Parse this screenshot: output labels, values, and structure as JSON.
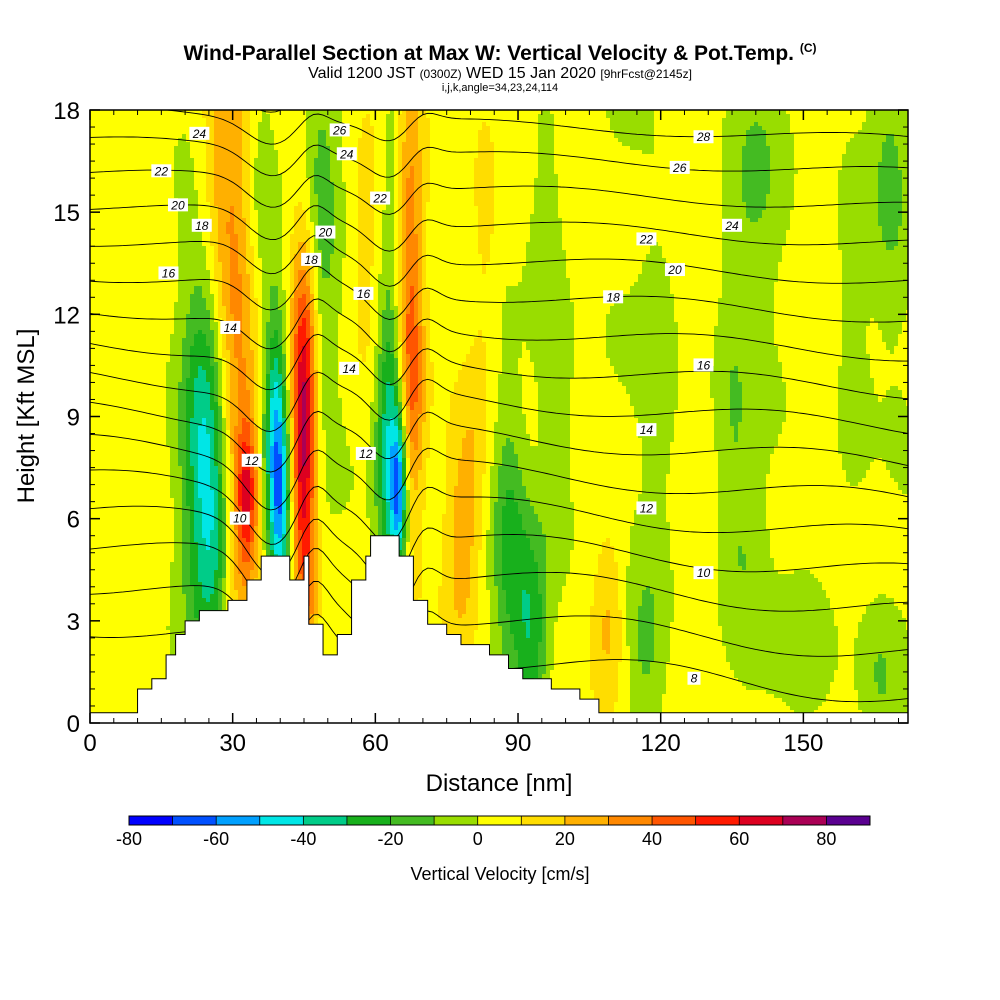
{
  "title": {
    "main": "Wind-Parallel Section at Max W: Vertical Velocity & Pot.Temp.",
    "copyright": "(C)",
    "valid_prefix": "Valid 1200 JST",
    "valid_utc": "(0300Z)",
    "valid_date": "WED 15 Jan 2020",
    "forecast": "[9hrFcst@2145z]",
    "indices": "i,j,k,angle=34,23,24,114"
  },
  "chart_data": {
    "type": "heatmap",
    "xlabel": "Distance [nm]",
    "ylabel": "Height [Kft MSL]",
    "xlim": [
      0,
      172
    ],
    "ylim": [
      0,
      18
    ],
    "x_ticks": [
      0,
      30,
      60,
      90,
      120,
      150
    ],
    "y_ticks": [
      0,
      3,
      6,
      9,
      12,
      15,
      18
    ],
    "colorbar": {
      "label": "Vertical Velocity [cm/s]",
      "tick_labels": [
        -80,
        -60,
        -40,
        -20,
        0,
        20,
        40,
        60,
        80
      ],
      "bounds": [
        -80,
        90
      ],
      "step": 10,
      "colors": [
        "#0000ff",
        "#0050ff",
        "#00a0ff",
        "#00e6e6",
        "#00cc88",
        "#18b01c",
        "#44bb22",
        "#99dd00",
        "#ffff00",
        "#ffdd00",
        "#ffb000",
        "#ff8800",
        "#ff5500",
        "#ff1a00",
        "#dd0020",
        "#aa0055",
        "#5a0090"
      ]
    },
    "terrain_profile": [
      [
        0,
        0.3
      ],
      [
        10,
        0.3
      ],
      [
        10,
        1.0
      ],
      [
        13,
        1.0
      ],
      [
        13,
        1.3
      ],
      [
        16,
        1.3
      ],
      [
        16,
        2.0
      ],
      [
        18,
        2.0
      ],
      [
        18,
        2.6
      ],
      [
        20,
        2.6
      ],
      [
        20,
        3.0
      ],
      [
        23,
        3.0
      ],
      [
        23,
        3.3
      ],
      [
        29,
        3.3
      ],
      [
        29,
        3.6
      ],
      [
        33,
        3.6
      ],
      [
        33,
        4.2
      ],
      [
        36,
        4.2
      ],
      [
        36,
        4.9
      ],
      [
        42,
        4.9
      ],
      [
        42,
        4.2
      ],
      [
        45,
        4.2
      ],
      [
        45,
        4.9
      ],
      [
        46,
        4.9
      ],
      [
        46,
        2.9
      ],
      [
        49,
        2.9
      ],
      [
        49,
        2.0
      ],
      [
        52,
        2.0
      ],
      [
        52,
        2.6
      ],
      [
        55,
        2.6
      ],
      [
        55,
        4.2
      ],
      [
        58,
        4.2
      ],
      [
        58,
        4.9
      ],
      [
        59,
        4.9
      ],
      [
        59,
        5.5
      ],
      [
        65,
        5.5
      ],
      [
        65,
        4.9
      ],
      [
        68,
        4.9
      ],
      [
        68,
        3.6
      ],
      [
        71,
        3.6
      ],
      [
        71,
        2.9
      ],
      [
        75,
        2.9
      ],
      [
        75,
        2.6
      ],
      [
        78,
        2.6
      ],
      [
        78,
        2.3
      ],
      [
        84,
        2.3
      ],
      [
        84,
        2.0
      ],
      [
        88,
        2.0
      ],
      [
        88,
        1.6
      ],
      [
        91,
        1.6
      ],
      [
        91,
        1.3
      ],
      [
        97,
        1.3
      ],
      [
        97,
        1.0
      ],
      [
        103,
        1.0
      ],
      [
        103,
        0.7
      ],
      [
        107,
        0.7
      ],
      [
        107,
        0.3
      ],
      [
        172,
        0.3
      ]
    ],
    "w_cells": [
      {
        "x": 24,
        "y": 7.8,
        "sx": 3.2,
        "sy": 4.0,
        "amp": -42
      },
      {
        "x": 27,
        "y": 5.2,
        "sx": 2.5,
        "sy": 2.0,
        "amp": -20
      },
      {
        "x": 31,
        "y": 9.0,
        "sx": 3.0,
        "sy": 7.0,
        "amp": 28
      },
      {
        "x": 33,
        "y": 6.8,
        "sx": 1.5,
        "sy": 1.5,
        "amp": 40
      },
      {
        "x": 27,
        "y": 16.0,
        "sx": 3.0,
        "sy": 3.0,
        "amp": 20
      },
      {
        "x": 39,
        "y": 7.8,
        "sx": 1.7,
        "sy": 3.0,
        "amp": -58
      },
      {
        "x": 40.5,
        "y": 6.2,
        "sx": 1.3,
        "sy": 1.8,
        "amp": -28
      },
      {
        "x": 45,
        "y": 8.0,
        "sx": 1.7,
        "sy": 3.0,
        "amp": 62
      },
      {
        "x": 45,
        "y": 12.0,
        "sx": 2.0,
        "sy": 3.0,
        "amp": 26
      },
      {
        "x": 46,
        "y": 3.5,
        "sx": 1.5,
        "sy": 1.5,
        "amp": 18
      },
      {
        "x": 48,
        "y": 15.0,
        "sx": 3.0,
        "sy": 4.0,
        "amp": -18
      },
      {
        "x": 36,
        "y": 15.5,
        "sx": 2.5,
        "sy": 3.0,
        "amp": -15
      },
      {
        "x": 58,
        "y": 14.0,
        "sx": 3.0,
        "sy": 3.0,
        "amp": 12
      },
      {
        "x": 63,
        "y": 8.5,
        "sx": 2.0,
        "sy": 3.3,
        "amp": -45
      },
      {
        "x": 65,
        "y": 6.8,
        "sx": 1.2,
        "sy": 1.5,
        "amp": -50
      },
      {
        "x": 67,
        "y": 14.0,
        "sx": 2.0,
        "sy": 4.0,
        "amp": 30
      },
      {
        "x": 68,
        "y": 9.5,
        "sx": 1.7,
        "sy": 2.5,
        "amp": 22
      },
      {
        "x": 64,
        "y": 17.0,
        "sx": 2.0,
        "sy": 2.0,
        "amp": -14
      },
      {
        "x": 78,
        "y": 5.2,
        "sx": 2.5,
        "sy": 2.5,
        "amp": 22
      },
      {
        "x": 81,
        "y": 8.0,
        "sx": 2.5,
        "sy": 2.5,
        "amp": 12
      },
      {
        "x": 88,
        "y": 5.5,
        "sx": 2.5,
        "sy": 3.0,
        "amp": -22
      },
      {
        "x": 93,
        "y": 2.0,
        "sx": 2.5,
        "sy": 2.0,
        "amp": -25
      },
      {
        "x": 92,
        "y": 4.0,
        "sx": 3.0,
        "sy": 2.0,
        "amp": -14
      },
      {
        "x": 83,
        "y": 15.0,
        "sx": 2.0,
        "sy": 3.0,
        "amp": 12
      },
      {
        "x": 98,
        "y": 8.0,
        "sx": 3.0,
        "sy": 3.0,
        "amp": -12
      },
      {
        "x": 96,
        "y": 14.5,
        "sx": 3.0,
        "sy": 3.0,
        "amp": -12
      },
      {
        "x": 109,
        "y": 3.0,
        "sx": 2.5,
        "sy": 2.0,
        "amp": 20
      },
      {
        "x": 117,
        "y": 2.0,
        "sx": 3.0,
        "sy": 2.0,
        "amp": -14
      },
      {
        "x": 120,
        "y": 10.0,
        "sx": 3.0,
        "sy": 4.0,
        "amp": -10
      },
      {
        "x": 135,
        "y": 9.0,
        "sx": 3.0,
        "sy": 4.0,
        "amp": -12
      },
      {
        "x": 138,
        "y": 5.0,
        "sx": 3.0,
        "sy": 2.0,
        "amp": -8
      },
      {
        "x": 140,
        "y": 16.0,
        "sx": 4.0,
        "sy": 2.5,
        "amp": -12
      },
      {
        "x": 152,
        "y": 2.5,
        "sx": 4.0,
        "sy": 2.0,
        "amp": -10
      },
      {
        "x": 160,
        "y": 12.0,
        "sx": 3.0,
        "sy": 5.0,
        "amp": -10
      },
      {
        "x": 168,
        "y": 16.0,
        "sx": 3.0,
        "sy": 3.0,
        "amp": -14
      },
      {
        "x": 166,
        "y": 1.5,
        "sx": 3.0,
        "sy": 1.5,
        "amp": -12
      }
    ],
    "theta_contours": {
      "levels": [
        8,
        9,
        10,
        11,
        12,
        13,
        14,
        15,
        16,
        17,
        18,
        19,
        20,
        21,
        22,
        23,
        24,
        25,
        26,
        27,
        28,
        29
      ],
      "labels": [
        {
          "text": "24",
          "x": 23,
          "y": 17.3
        },
        {
          "text": "22",
          "x": 15,
          "y": 16.2
        },
        {
          "text": "20",
          "x": 18.5,
          "y": 15.2
        },
        {
          "text": "18",
          "x": 23.5,
          "y": 14.6
        },
        {
          "text": "16",
          "x": 16.5,
          "y": 13.2
        },
        {
          "text": "14",
          "x": 29.5,
          "y": 11.6
        },
        {
          "text": "12",
          "x": 34,
          "y": 7.7
        },
        {
          "text": "10",
          "x": 31.5,
          "y": 6.0
        },
        {
          "text": "26",
          "x": 52.5,
          "y": 17.4
        },
        {
          "text": "24",
          "x": 54,
          "y": 16.7
        },
        {
          "text": "22",
          "x": 61,
          "y": 15.4
        },
        {
          "text": "20",
          "x": 49.5,
          "y": 14.4
        },
        {
          "text": "18",
          "x": 46.5,
          "y": 13.6
        },
        {
          "text": "16",
          "x": 57.5,
          "y": 12.6
        },
        {
          "text": "14",
          "x": 54.5,
          "y": 10.4
        },
        {
          "text": "12",
          "x": 58,
          "y": 7.9
        },
        {
          "text": "28",
          "x": 129,
          "y": 17.2
        },
        {
          "text": "26",
          "x": 124,
          "y": 16.3
        },
        {
          "text": "24",
          "x": 135,
          "y": 14.6
        },
        {
          "text": "22",
          "x": 117,
          "y": 14.2
        },
        {
          "text": "20",
          "x": 123,
          "y": 13.3
        },
        {
          "text": "18",
          "x": 110,
          "y": 12.5
        },
        {
          "text": "16",
          "x": 129,
          "y": 10.5
        },
        {
          "text": "14",
          "x": 117,
          "y": 8.6
        },
        {
          "text": "12",
          "x": 117,
          "y": 6.3
        },
        {
          "text": "10",
          "x": 129,
          "y": 4.4
        },
        {
          "text": "8",
          "x": 127,
          "y": 1.3
        }
      ]
    }
  }
}
